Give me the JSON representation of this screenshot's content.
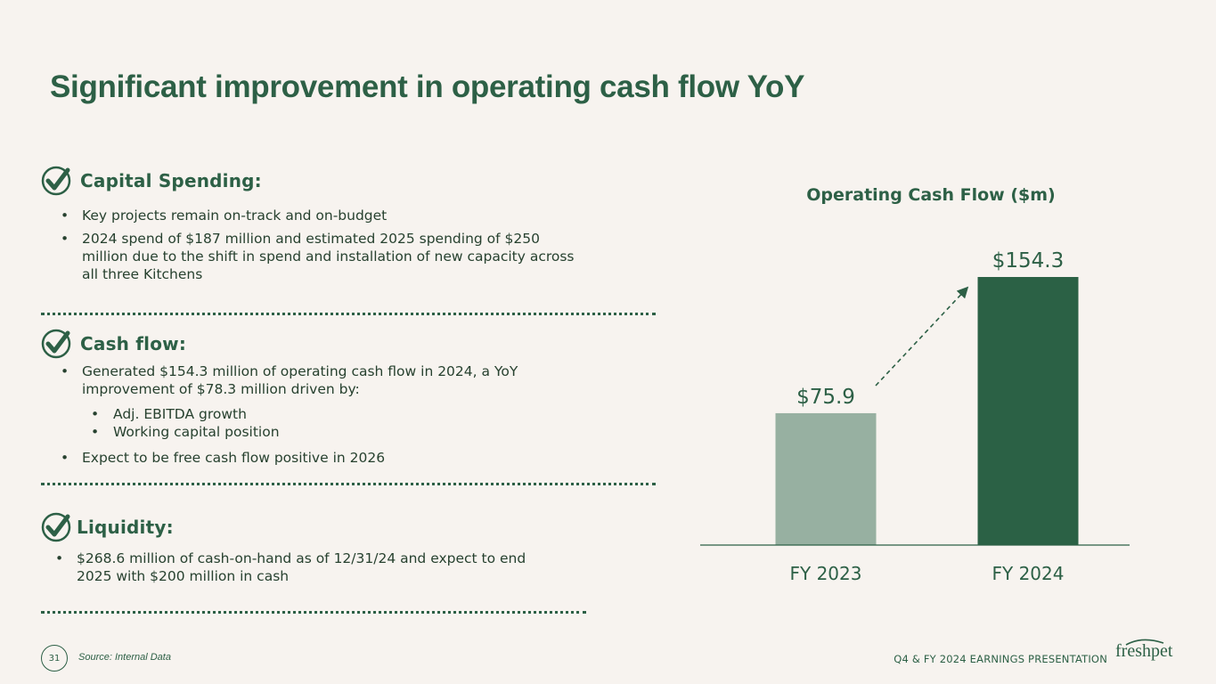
{
  "title": "Significant improvement in operating cash flow YoY",
  "sections": [
    {
      "title": "Capital Spending:",
      "bullets": [
        "Key projects remain on-track and on-budget",
        "2024 spend of $187 million and estimated 2025 spending of $250 million due to the shift in spend and installation of new capacity across all three Kitchens"
      ]
    },
    {
      "title": "Cash flow:",
      "bullets": [
        "Generated $154.3 million of operating cash flow in 2024, a YoY improvement of $78.3 million driven by:",
        "Expect to be free cash flow positive in 2026"
      ],
      "sub_bullets": [
        "Adj. EBITDA growth",
        "Working capital position"
      ]
    },
    {
      "title": "Liquidity:",
      "bullets": [
        "$268.6 million of cash-on-hand as of 12/31/24 and expect to end 2025 with $200 million in cash"
      ]
    }
  ],
  "chart_data": {
    "type": "bar",
    "title": "Operating Cash Flow ($m)",
    "categories": [
      "FY 2023",
      "FY 2024"
    ],
    "values": [
      75.9,
      154.3
    ],
    "value_labels": [
      "$75.9",
      "$154.3"
    ],
    "bar_colors": [
      "#97b0a1",
      "#2b6145"
    ],
    "ylim": [
      0,
      154.3
    ],
    "trend_arrow": true,
    "grid": false
  },
  "footer": {
    "page_number": "31",
    "source": "Source: Internal Data",
    "presentation": "Q4 & FY 2024 EARNINGS PRESENTATION",
    "logo_text": "freshpet"
  },
  "colors": {
    "background": "#f7f3ef",
    "brand_green": "#2d6046",
    "light_green": "#97b0a1",
    "dark_green": "#2b6145"
  }
}
